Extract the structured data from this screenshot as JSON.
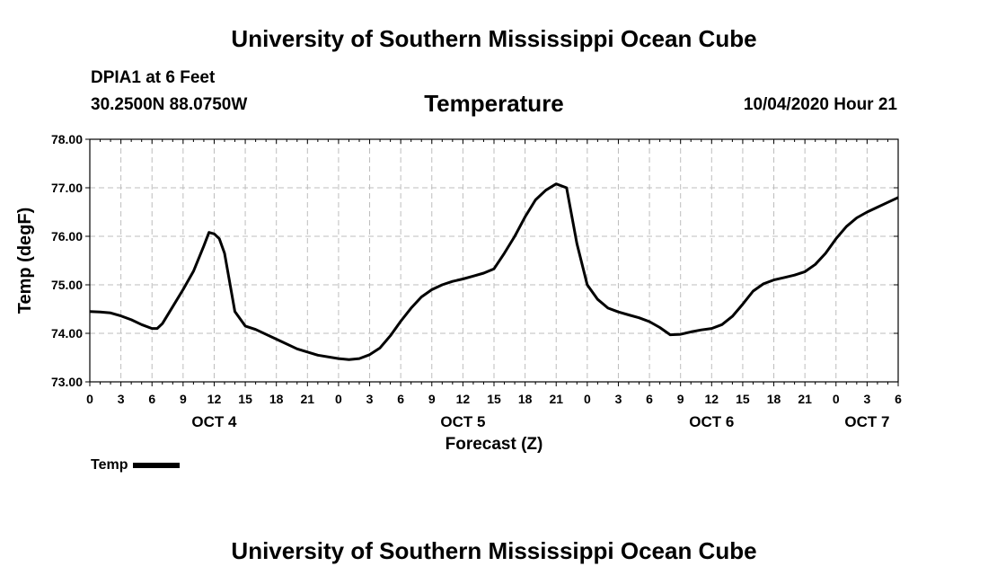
{
  "header": {
    "title": "University of Southern Mississippi Ocean Cube",
    "station": "DPIA1 at 6 Feet",
    "coords": "30.2500N 88.0750W",
    "run_time": "10/04/2020 Hour 21"
  },
  "footer": {
    "title": "University of Southern Mississippi Ocean Cube"
  },
  "chart_data": {
    "type": "line",
    "title": "Temperature",
    "xlabel": "Forecast (Z)",
    "ylabel": "Temp (degF)",
    "ylim": [
      73.0,
      78.0
    ],
    "yticks": [
      "73.00",
      "74.00",
      "75.00",
      "76.00",
      "77.00",
      "78.00"
    ],
    "xlim": [
      0,
      78
    ],
    "xtick_step_hours": 3,
    "xtick_labels": [
      "0",
      "3",
      "6",
      "9",
      "12",
      "15",
      "18",
      "21",
      "0",
      "3",
      "6",
      "9",
      "12",
      "15",
      "18",
      "21",
      "0",
      "3",
      "6",
      "9",
      "12",
      "15",
      "18",
      "21",
      "0",
      "3",
      "6"
    ],
    "date_labels": [
      {
        "label": "OCT 4",
        "hour": 12
      },
      {
        "label": "OCT 5",
        "hour": 36
      },
      {
        "label": "OCT 6",
        "hour": 60
      },
      {
        "label": "OCT 7",
        "hour": 75
      }
    ],
    "grid": true,
    "legend_position": "bottom-left",
    "series": [
      {
        "name": "Temp",
        "color": "#000000",
        "x": [
          0,
          1,
          2,
          3,
          4,
          5,
          6,
          6.5,
          7,
          8,
          9,
          10,
          11,
          11.5,
          12,
          12.5,
          13,
          14,
          15,
          16,
          18,
          20,
          22,
          24,
          25,
          26,
          27,
          28,
          29,
          30,
          31,
          32,
          33,
          34,
          35,
          36,
          37,
          38,
          39,
          40,
          41,
          42,
          43,
          44,
          45,
          46,
          47,
          48,
          49,
          50,
          51,
          52,
          53,
          54,
          55,
          56,
          57,
          58,
          59,
          60,
          61,
          62,
          63,
          64,
          65,
          66,
          67,
          68,
          69,
          70,
          71,
          72,
          73,
          74,
          75,
          76,
          77,
          78
        ],
        "values": [
          74.45,
          74.44,
          74.42,
          74.36,
          74.28,
          74.18,
          74.1,
          74.1,
          74.2,
          74.55,
          74.9,
          75.28,
          75.8,
          76.08,
          76.05,
          75.95,
          75.65,
          74.45,
          74.15,
          74.08,
          73.88,
          73.68,
          73.55,
          73.48,
          73.46,
          73.48,
          73.56,
          73.7,
          73.95,
          74.25,
          74.52,
          74.75,
          74.9,
          75.0,
          75.07,
          75.12,
          75.18,
          75.24,
          75.33,
          75.65,
          76.0,
          76.4,
          76.75,
          76.95,
          77.08,
          77.0,
          75.85,
          75.0,
          74.7,
          74.52,
          74.44,
          74.38,
          74.32,
          74.24,
          74.12,
          73.97,
          73.98,
          74.03,
          74.07,
          74.1,
          74.18,
          74.35,
          74.6,
          74.87,
          75.02,
          75.1,
          75.15,
          75.2,
          75.27,
          75.42,
          75.65,
          75.95,
          76.2,
          76.38,
          76.5,
          76.6,
          76.7,
          76.8
        ]
      }
    ]
  }
}
